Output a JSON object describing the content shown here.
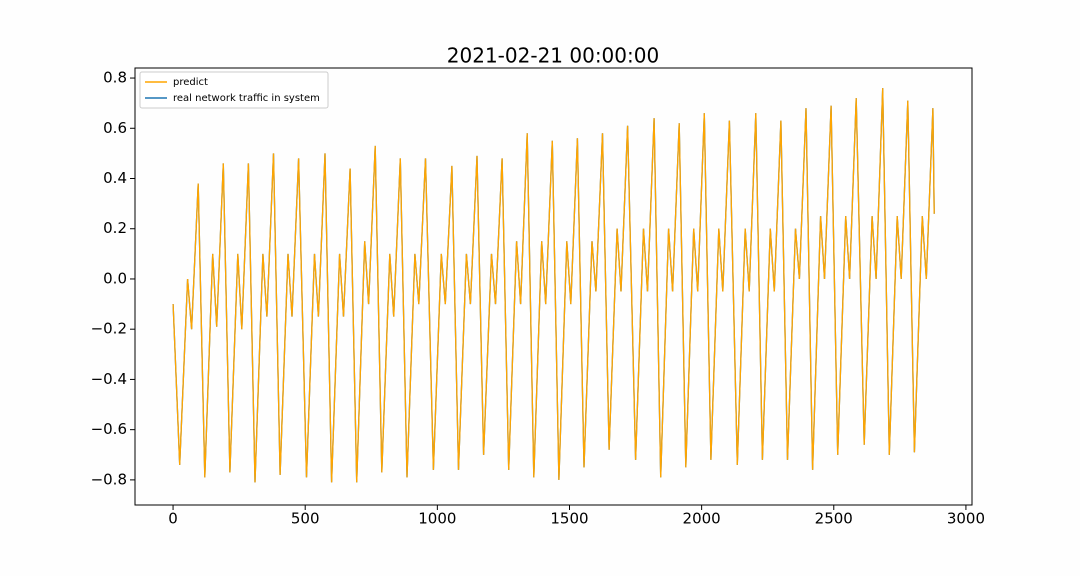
{
  "chart_data": {
    "type": "line",
    "title": "2021-02-21 00:00:00",
    "x": [
      0,
      25,
      55,
      70,
      95,
      120,
      150,
      165,
      190,
      215,
      245,
      260,
      285,
      310,
      340,
      355,
      380,
      405,
      435,
      450,
      475,
      505,
      535,
      550,
      575,
      600,
      630,
      645,
      670,
      695,
      725,
      740,
      765,
      790,
      820,
      835,
      860,
      885,
      915,
      930,
      955,
      985,
      1015,
      1030,
      1055,
      1080,
      1110,
      1125,
      1150,
      1175,
      1205,
      1220,
      1245,
      1270,
      1300,
      1315,
      1340,
      1365,
      1395,
      1410,
      1435,
      1460,
      1490,
      1505,
      1530,
      1555,
      1585,
      1600,
      1625,
      1650,
      1680,
      1695,
      1720,
      1750,
      1780,
      1795,
      1820,
      1845,
      1875,
      1890,
      1915,
      1940,
      1970,
      1985,
      2010,
      2035,
      2065,
      2080,
      2105,
      2135,
      2165,
      2180,
      2205,
      2230,
      2260,
      2275,
      2300,
      2325,
      2355,
      2370,
      2395,
      2420,
      2450,
      2465,
      2490,
      2515,
      2545,
      2560,
      2585,
      2615,
      2645,
      2660,
      2685,
      2710,
      2740,
      2755,
      2780,
      2805,
      2835,
      2850,
      2875,
      2880
    ],
    "series": [
      {
        "name": "predict",
        "color": "#ffa500",
        "values": [
          -0.1,
          -0.74,
          0.0,
          -0.2,
          0.38,
          -0.79,
          0.1,
          -0.19,
          0.46,
          -0.77,
          0.1,
          -0.2,
          0.46,
          -0.81,
          0.1,
          -0.15,
          0.5,
          -0.78,
          0.1,
          -0.15,
          0.48,
          -0.79,
          0.1,
          -0.15,
          0.5,
          -0.81,
          0.1,
          -0.15,
          0.44,
          -0.81,
          0.15,
          -0.1,
          0.53,
          -0.77,
          0.1,
          -0.15,
          0.48,
          -0.79,
          0.1,
          -0.1,
          0.48,
          -0.76,
          0.1,
          -0.1,
          0.45,
          -0.76,
          0.1,
          -0.1,
          0.49,
          -0.7,
          0.1,
          -0.1,
          0.48,
          -0.76,
          0.15,
          -0.1,
          0.58,
          -0.79,
          0.15,
          -0.1,
          0.55,
          -0.8,
          0.15,
          -0.1,
          0.56,
          -0.75,
          0.15,
          -0.05,
          0.58,
          -0.68,
          0.2,
          -0.05,
          0.61,
          -0.72,
          0.2,
          -0.05,
          0.64,
          -0.79,
          0.2,
          -0.05,
          0.62,
          -0.75,
          0.2,
          -0.05,
          0.66,
          -0.72,
          0.2,
          -0.05,
          0.63,
          -0.74,
          0.2,
          -0.05,
          0.66,
          -0.72,
          0.2,
          -0.05,
          0.63,
          -0.72,
          0.2,
          0.0,
          0.68,
          -0.76,
          0.25,
          0.0,
          0.69,
          -0.7,
          0.25,
          0.0,
          0.72,
          -0.66,
          0.25,
          0.0,
          0.76,
          -0.7,
          0.25,
          0.0,
          0.71,
          -0.69,
          0.25,
          0.0,
          0.68,
          0.26
        ]
      },
      {
        "name": "real network traffic in system",
        "color": "#1f77b4",
        "values": [
          -0.1,
          -0.74,
          0.0,
          -0.2,
          0.38,
          -0.79,
          0.1,
          -0.19,
          0.46,
          -0.77,
          0.1,
          -0.2,
          0.46,
          -0.81,
          0.1,
          -0.15,
          0.5,
          -0.78,
          0.1,
          -0.15,
          0.48,
          -0.79,
          0.1,
          -0.15,
          0.5,
          -0.81,
          0.1,
          -0.15,
          0.44,
          -0.81,
          0.15,
          -0.1,
          0.53,
          -0.77,
          0.1,
          -0.15,
          0.48,
          -0.79,
          0.1,
          -0.1,
          0.48,
          -0.76,
          0.1,
          -0.1,
          0.45,
          -0.76,
          0.1,
          -0.1,
          0.49,
          -0.7,
          0.1,
          -0.1,
          0.48,
          -0.76,
          0.15,
          -0.1,
          0.58,
          -0.79,
          0.15,
          -0.1,
          0.55,
          -0.8,
          0.15,
          -0.1,
          0.56,
          -0.75,
          0.15,
          -0.05,
          0.58,
          -0.68,
          0.2,
          -0.05,
          0.61,
          -0.72,
          0.2,
          -0.05,
          0.64,
          -0.79,
          0.2,
          -0.05,
          0.62,
          -0.75,
          0.2,
          -0.05,
          0.66,
          -0.72,
          0.2,
          -0.05,
          0.63,
          -0.74,
          0.2,
          -0.05,
          0.66,
          -0.72,
          0.2,
          -0.05,
          0.63,
          -0.72,
          0.2,
          0.0,
          0.68,
          -0.76,
          0.25,
          0.0,
          0.69,
          -0.7,
          0.25,
          0.0,
          0.72,
          -0.66,
          0.25,
          0.0,
          0.76,
          -0.7,
          0.25,
          0.0,
          0.71,
          -0.69,
          0.25,
          0.0,
          0.68,
          0.26
        ]
      }
    ],
    "xlim": [
      -144,
      3023
    ],
    "xticks": [
      0,
      500,
      1000,
      1500,
      2000,
      2500,
      3000
    ],
    "ylim": [
      -0.9,
      0.84
    ],
    "yticks": [
      {
        "value": -0.8,
        "label": "−0.8"
      },
      {
        "value": -0.6,
        "label": "−0.6"
      },
      {
        "value": -0.4,
        "label": "−0.4"
      },
      {
        "value": -0.2,
        "label": "−0.2"
      },
      {
        "value": 0,
        "label": "0.0"
      },
      0.2,
      0.4,
      0.6,
      0.8
    ],
    "legend": "upper left",
    "grid": false
  }
}
